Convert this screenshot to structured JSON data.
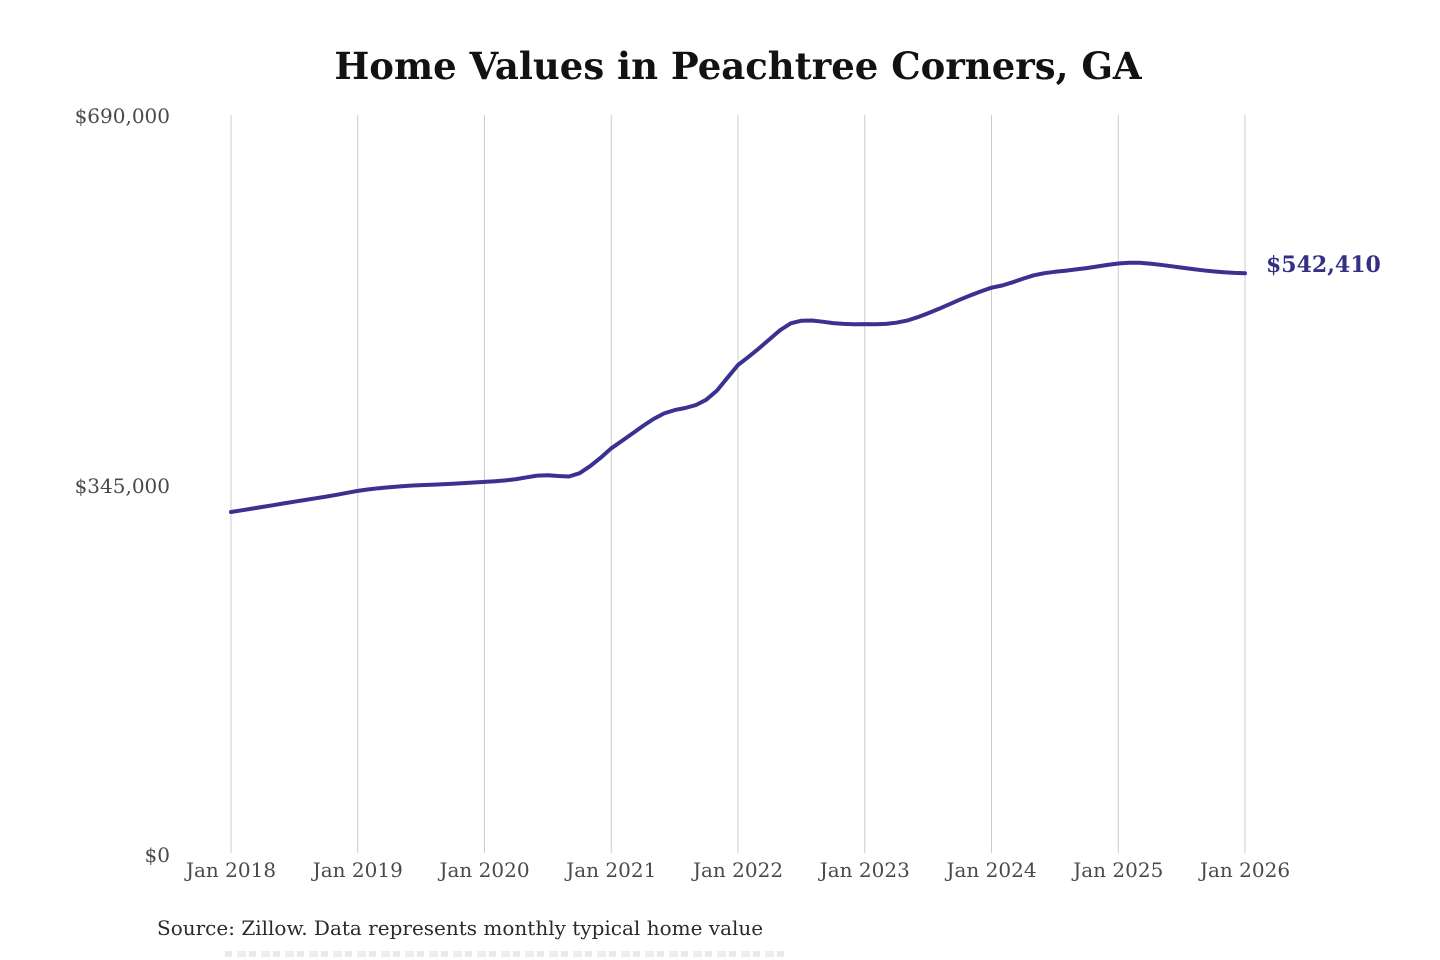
{
  "title": "Home Values in Peachtree Corners, GA",
  "end_value_label": "$542,410",
  "source_note": "Source: Zillow. Data represents monthly typical home value",
  "y_axis": {
    "tick_labels": [
      "$0",
      "$345,000",
      "$690,000"
    ]
  },
  "x_axis": {
    "tick_labels": [
      "Jan 2018",
      "Jan 2019",
      "Jan 2020",
      "Jan 2021",
      "Jan 2022",
      "Jan 2023",
      "Jan 2024",
      "Jan 2025",
      "Jan 2026"
    ]
  },
  "colors": {
    "line": "#3a3191",
    "end_label": "#353085",
    "grid": "#cccccc",
    "axis_text": "#4a4a4a",
    "title_text": "#121212",
    "source_text": "#2b2b2b",
    "background": "#ffffff"
  },
  "chart_data": {
    "type": "line",
    "title": "Home Values in Peachtree Corners, GA",
    "xlabel": "",
    "ylabel": "",
    "x_start": "Jan 2018",
    "x_end": "Jan 2026",
    "interval": "monthly",
    "ylim": [
      0,
      690000
    ],
    "y_ticks": [
      0,
      345000,
      690000
    ],
    "x_tick_labels": [
      "Jan 2018",
      "Jan 2019",
      "Jan 2020",
      "Jan 2021",
      "Jan 2022",
      "Jan 2023",
      "Jan 2024",
      "Jan 2025",
      "Jan 2026"
    ],
    "grid": "vertical-only",
    "legend": "none",
    "last_point_label": "$542,410",
    "values": [
      319800,
      321400,
      323000,
      324600,
      326200,
      327800,
      329400,
      331000,
      332600,
      334200,
      335900,
      337700,
      339500,
      340900,
      342000,
      342900,
      343700,
      344400,
      344900,
      345300,
      345700,
      346200,
      346800,
      347300,
      347900,
      348500,
      349300,
      350500,
      352200,
      353800,
      354100,
      353400,
      352900,
      356000,
      362500,
      370500,
      379200,
      386000,
      393000,
      400000,
      406500,
      411800,
      414800,
      416800,
      419500,
      424500,
      433000,
      445000,
      456900,
      464500,
      472500,
      481000,
      489500,
      495800,
      498200,
      498400,
      497300,
      496000,
      495200,
      494800,
      495000,
      494800,
      495200,
      496300,
      498300,
      501500,
      505200,
      509200,
      513500,
      517800,
      521800,
      525500,
      529000,
      531000,
      534000,
      537500,
      540500,
      542500,
      543800,
      544800,
      546000,
      547200,
      548700,
      550200,
      551500,
      552300,
      552200,
      551400,
      550300,
      549000,
      547700,
      546400,
      545200,
      544200,
      543400,
      542800,
      542410
    ]
  }
}
